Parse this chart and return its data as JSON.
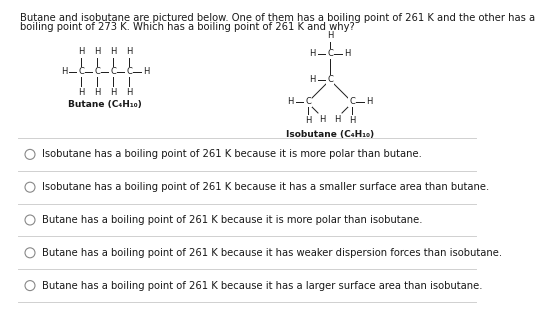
{
  "title_line1": "Butane and isobutane are pictured below. One of them has a boiling point of 261 K and the other has a",
  "title_line2": "boiling point of 273 K. Which has a boiling point of 261 K and why?",
  "background_color": "#ffffff",
  "text_color": "#1a1a1a",
  "divider_color": "#d0d0d0",
  "options": [
    "Isobutane has a boiling point of 261 K because it is more polar than butane.",
    "Isobutane has a boiling point of 261 K because it has a smaller surface area than butane.",
    "Butane has a boiling point of 261 K because it is more polar than isobutane.",
    "Butane has a boiling point of 261 K because it has weaker dispersion forces than isobutane.",
    "Butane has a boiling point of 261 K because it has a larger surface area than isobutane."
  ],
  "butane_label": "Butane (C₄H₁₀)",
  "isobutane_label": "Isobutane (C₄H₁₀)",
  "font_size_title": 7.2,
  "font_size_options": 7.2,
  "font_size_label": 6.5,
  "font_size_struct": 6.0
}
